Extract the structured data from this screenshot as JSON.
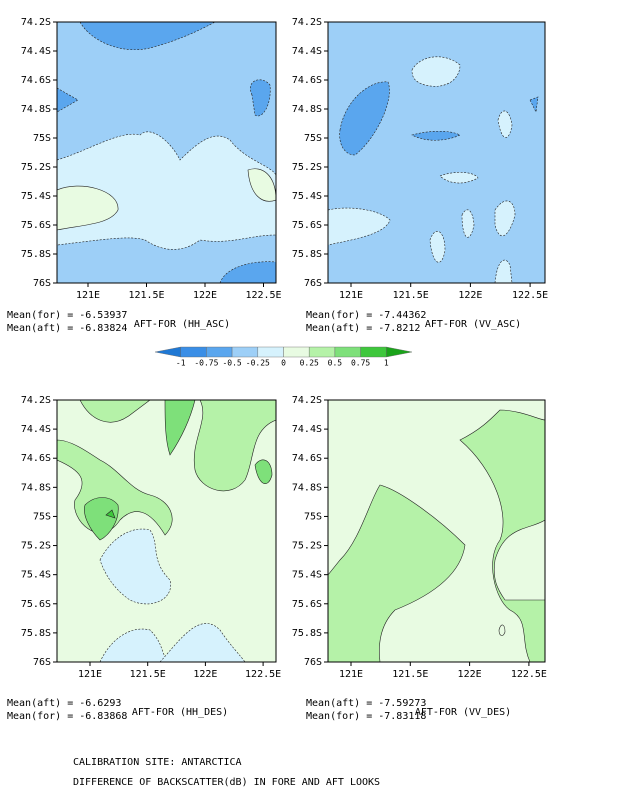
{
  "panels": [
    {
      "title": "AFT-FOR (HH_ASC)",
      "stats": [
        "Mean(for) = -6.53937",
        "Mean(aft) = -6.83824"
      ],
      "xticks": [
        "121E",
        "121.5E",
        "122E",
        "122.5E"
      ],
      "yticks": [
        "74.2S",
        "74.4S",
        "74.6S",
        "74.8S",
        "75S",
        "75.2S",
        "75.4S",
        "75.6S",
        "75.8S",
        "76S"
      ]
    },
    {
      "title": "AFT-FOR (VV_ASC)",
      "stats": [
        "Mean(for) = -7.44362",
        "Mean(aft) = -7.8212"
      ],
      "xticks": [
        "121E",
        "121.5E",
        "122E",
        "122.5E"
      ],
      "yticks": [
        "74.2S",
        "74.4S",
        "74.6S",
        "74.8S",
        "75S",
        "75.2S",
        "75.4S",
        "75.6S",
        "75.8S",
        "76S"
      ]
    },
    {
      "title": "AFT-FOR (HH_DES)",
      "stats": [
        "Mean(aft) = -6.6293",
        "Mean(for) = -6.83868"
      ],
      "xticks": [
        "121E",
        "121.5E",
        "122E",
        "122.5E"
      ],
      "yticks": [
        "74.2S",
        "74.4S",
        "74.6S",
        "74.8S",
        "75S",
        "75.2S",
        "75.4S",
        "75.6S",
        "75.8S",
        "76S"
      ]
    },
    {
      "title": "AFT-FOR (VV_DES)",
      "stats": [
        "Mean(aft) = -7.59273",
        "Mean(for) = -7.83118"
      ],
      "xticks": [
        "121E",
        "121.5E",
        "122E",
        "122.5E"
      ],
      "yticks": [
        "74.2S",
        "74.4S",
        "74.6S",
        "74.8S",
        "75S",
        "75.2S",
        "75.4S",
        "75.6S",
        "75.8S",
        "76S"
      ]
    }
  ],
  "colorbar": {
    "levels": [
      -1,
      -0.75,
      -0.5,
      -0.25,
      0,
      0.25,
      0.5,
      0.75,
      1
    ],
    "colors": [
      "#1f78d4",
      "#3a8ee6",
      "#5aa6ee",
      "#9dcff7",
      "#d6f2fd",
      "#e8fbe2",
      "#b5f2a8",
      "#7ee07a",
      "#3ec73c",
      "#1aa31a"
    ]
  },
  "footer": [
    "CALIBRATION SITE: ANTARCTICA",
    "DIFFERENCE OF BACKSCATTER(dB) IN FORE AND AFT LOOKS"
  ]
}
